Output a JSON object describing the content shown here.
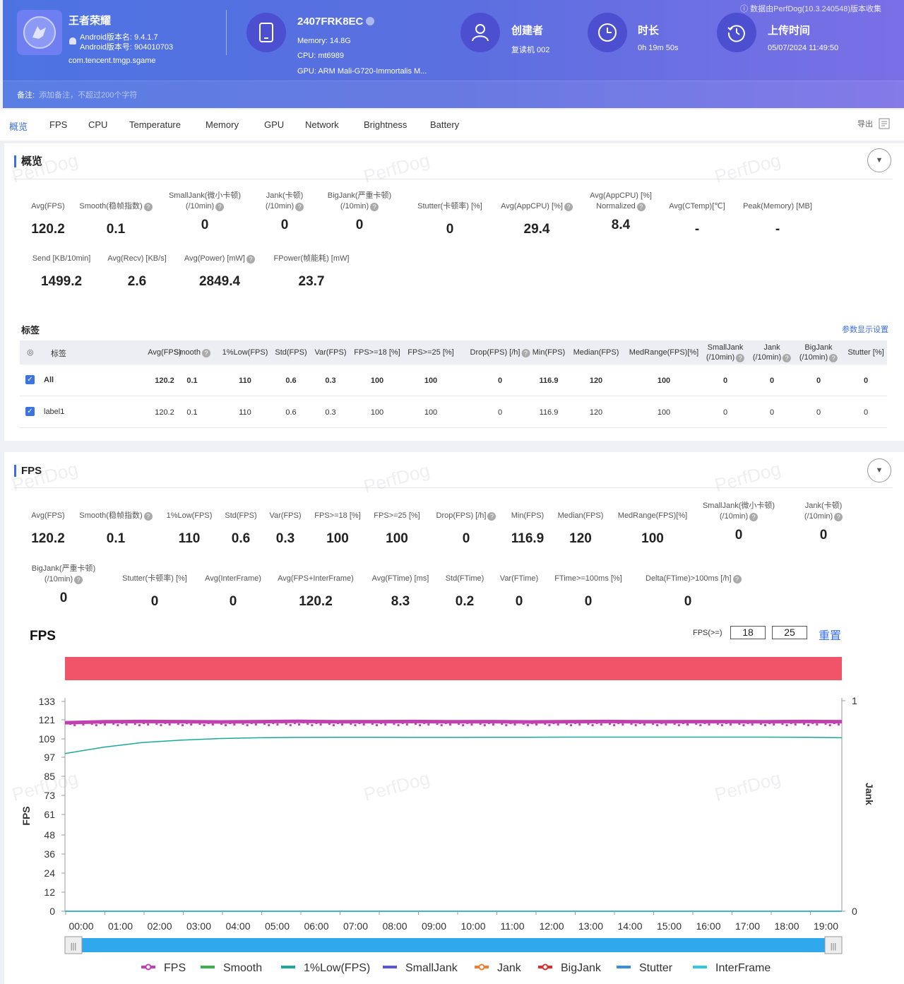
{
  "header": {
    "app_name": "王者荣耀",
    "android_version_name": "Android版本名: 9.4.1.7",
    "android_version_code": "Android版本号: 904010703",
    "package": "com.tencent.tmgp.sgame",
    "device_name": "2407FRK8EC",
    "memory": "Memory: 14.8G",
    "cpu": "CPU: mt6989",
    "gpu": "GPU: ARM Mali-G720-Immortalis M...",
    "creator_label": "创建者",
    "creator_value": "复读机 002",
    "duration_label": "时长",
    "duration_value": "0h 19m 50s",
    "upload_label": "上传时间",
    "upload_value": "05/07/2024 11:49:50",
    "data_source": "数据由PerfDog(10.3.240548)版本收集",
    "note_label": "备注:",
    "note_placeholder": "添加备注，不超过200个字符"
  },
  "tabs": [
    "概览",
    "FPS",
    "CPU",
    "Temperature",
    "Memory",
    "GPU",
    "Network",
    "Brightness",
    "Battery"
  ],
  "export_label": "导出",
  "watermark": "PerfDog",
  "overview": {
    "title": "概览",
    "stats": [
      {
        "label": "Avg(FPS)",
        "value": "120.2"
      },
      {
        "label": "Smooth(稳帧指数)",
        "value": "0.1"
      },
      {
        "label": "SmallJank(微小卡顿)",
        "label2": "(/10min)",
        "value": "0"
      },
      {
        "label": "Jank(卡顿)",
        "label2": "(/10min)",
        "value": "0"
      },
      {
        "label": "BigJank(严重卡顿)",
        "label2": "(/10min)",
        "value": "0"
      },
      {
        "label": "Stutter(卡顿率) [%]",
        "value": "0"
      },
      {
        "label": "Avg(AppCPU) [%]",
        "value": "29.4"
      },
      {
        "label": "Avg(AppCPU) [%]",
        "label2": "Normalized",
        "value": "8.4"
      },
      {
        "label": "Avg(CTemp)[℃]",
        "value": "-"
      },
      {
        "label": "Peak(Memory) [MB]",
        "value": "-"
      },
      {
        "label": "Send [KB/10min]",
        "value": "1499.2"
      },
      {
        "label": "Avg(Recv) [KB/s]",
        "value": "2.6"
      },
      {
        "label": "Avg(Power) [mW]",
        "value": "2849.4"
      },
      {
        "label": "FPower(帧能耗) [mW]",
        "value": "23.7"
      }
    ],
    "labels_title": "标签",
    "param_settings": "参数显示设置",
    "table": {
      "columns": [
        "标签",
        "Avg(FPS)",
        "Smooth",
        "1%Low(FPS)",
        "Std(FPS)",
        "Var(FPS)",
        "FPS>=18 [%]",
        "FPS>=25 [%]",
        "Drop(FPS) [/h]",
        "Min(FPS)",
        "Median(FPS)",
        "MedRange(FPS)[%]",
        "SmallJank",
        "Jank",
        "BigJank",
        "Stutter [%]"
      ],
      "sub": "(/10min)",
      "rows": [
        {
          "name": "All",
          "values": [
            "120.2",
            "0.1",
            "110",
            "0.6",
            "0.3",
            "100",
            "100",
            "0",
            "116.9",
            "120",
            "100",
            "0",
            "0",
            "0",
            "0"
          ]
        },
        {
          "name": "label1",
          "values": [
            "120.2",
            "0.1",
            "110",
            "0.6",
            "0.3",
            "100",
            "100",
            "0",
            "116.9",
            "120",
            "100",
            "0",
            "0",
            "0",
            "0"
          ]
        }
      ]
    }
  },
  "fps_section": {
    "title": "FPS",
    "stats": [
      {
        "label": "Avg(FPS)",
        "value": "120.2"
      },
      {
        "label": "Smooth(稳帧指数)",
        "value": "0.1"
      },
      {
        "label": "1%Low(FPS)",
        "value": "110"
      },
      {
        "label": "Std(FPS)",
        "value": "0.6"
      },
      {
        "label": "Var(FPS)",
        "value": "0.3"
      },
      {
        "label": "FPS>=18 [%]",
        "value": "100"
      },
      {
        "label": "FPS>=25 [%]",
        "value": "100"
      },
      {
        "label": "Drop(FPS) [/h]",
        "value": "0"
      },
      {
        "label": "Min(FPS)",
        "value": "116.9"
      },
      {
        "label": "Median(FPS)",
        "value": "120"
      },
      {
        "label": "MedRange(FPS)[%]",
        "value": "100"
      },
      {
        "label": "SmallJank(微小卡顿)",
        "label2": "(/10min)",
        "value": "0"
      },
      {
        "label": "Jank(卡顿)",
        "label2": "(/10min)",
        "value": "0"
      },
      {
        "label": "BigJank(严重卡顿)",
        "label2": "(/10min)",
        "value": "0"
      },
      {
        "label": "Stutter(卡顿率) [%]",
        "value": "0"
      },
      {
        "label": "Avg(InterFrame)",
        "value": "0"
      },
      {
        "label": "Avg(FPS+InterFrame)",
        "value": "120.2"
      },
      {
        "label": "Avg(FTime) [ms]",
        "value": "8.3"
      },
      {
        "label": "Std(FTime)",
        "value": "0.2"
      },
      {
        "label": "Var(FTime)",
        "value": "0"
      },
      {
        "label": "FTime>=100ms [%]",
        "value": "0"
      },
      {
        "label": "Delta(FTime)>100ms [/h]",
        "value": "0"
      }
    ],
    "chart_title": "FPS",
    "fps_threshold_label": "FPS(>=)",
    "fps_threshold_1": "18",
    "fps_threshold_2": "25",
    "reset_label": "重置"
  },
  "chart_data": {
    "type": "line",
    "ylabel": "FPS",
    "y2label": "Jank",
    "yticks": [
      "133",
      "121",
      "109",
      "97",
      "85",
      "73",
      "61",
      "48",
      "36",
      "24",
      "12",
      "0"
    ],
    "ylim": [
      0,
      133
    ],
    "y2ticks": [
      "1",
      "0"
    ],
    "xticks": [
      "00:00",
      "01:00",
      "02:00",
      "03:00",
      "04:00",
      "05:00",
      "06:00",
      "07:00",
      "08:00",
      "09:00",
      "10:00",
      "11:00",
      "12:00",
      "13:00",
      "14:00",
      "15:00",
      "16:00",
      "17:00",
      "18:00",
      "19:00"
    ],
    "series": [
      {
        "name": "FPS",
        "color": "#c040b0",
        "values": [
          119.5,
          120.1,
          120.3,
          120.2,
          120.0,
          120.2,
          120.4,
          120.1,
          120.2,
          120.3,
          120.1,
          120.2,
          120.0,
          120.2,
          120.3,
          120.1,
          120.2,
          120.2,
          120.1,
          120.3,
          120.2
        ]
      },
      {
        "name": "Smooth",
        "color": "#3cb050",
        "values": [
          0,
          0,
          0,
          0,
          0,
          0,
          0,
          0,
          0,
          0,
          0,
          0,
          0,
          0,
          0,
          0,
          0,
          0,
          0,
          0,
          0
        ]
      },
      {
        "name": "1%Low(FPS)",
        "color": "#1aa99a",
        "values": [
          100,
          104,
          107,
          108.5,
          109.5,
          110,
          110.2,
          110.3,
          110.3,
          110.2,
          110.2,
          110.3,
          110.3,
          110.4,
          110.4,
          110.4,
          110.4,
          110.4,
          110.4,
          110.3,
          110.0
        ]
      },
      {
        "name": "SmallJank",
        "color": "#5a55d8",
        "values": [
          0,
          0,
          0,
          0,
          0,
          0,
          0,
          0,
          0,
          0,
          0,
          0,
          0,
          0,
          0,
          0,
          0,
          0,
          0,
          0,
          0
        ]
      },
      {
        "name": "Jank",
        "color": "#f08030",
        "values": [
          0,
          0,
          0,
          0,
          0,
          0,
          0,
          0,
          0,
          0,
          0,
          0,
          0,
          0,
          0,
          0,
          0,
          0,
          0,
          0,
          0
        ]
      },
      {
        "name": "BigJank",
        "color": "#d83030",
        "values": [
          0,
          0,
          0,
          0,
          0,
          0,
          0,
          0,
          0,
          0,
          0,
          0,
          0,
          0,
          0,
          0,
          0,
          0,
          0,
          0,
          0
        ]
      },
      {
        "name": "Stutter",
        "color": "#3a8ee0",
        "values": [
          0,
          0,
          0,
          0,
          0,
          0,
          0,
          0,
          0,
          0,
          0,
          0,
          0,
          0,
          0,
          0,
          0,
          0,
          0,
          0,
          0
        ]
      },
      {
        "name": "InterFrame",
        "color": "#30c8e0",
        "values": [
          0,
          0,
          0,
          0,
          0,
          0,
          0,
          0,
          0,
          0,
          0,
          0,
          0,
          0,
          0,
          0,
          0,
          0,
          0,
          0,
          0
        ]
      }
    ],
    "grid": false,
    "legend": "bottom",
    "band_color": "#f05468"
  },
  "colors": {
    "accent": "#3b6fe0",
    "header_start": "#4d73e2",
    "header_end": "#7a6fe6",
    "band": "#f05468",
    "slider": "#2fa8ee"
  }
}
